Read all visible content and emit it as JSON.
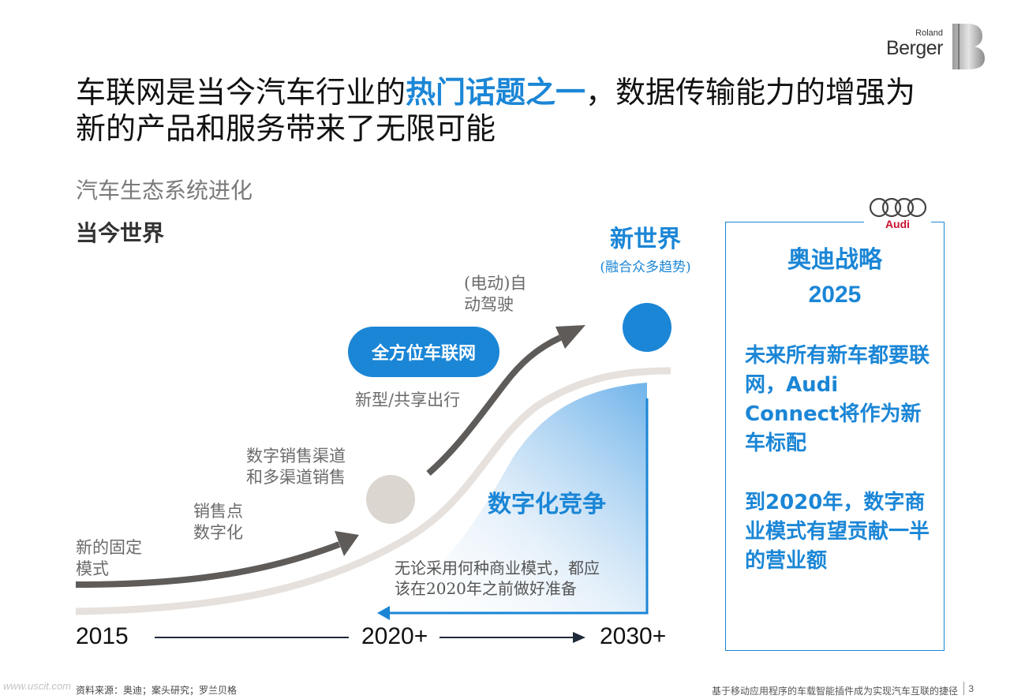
{
  "brand": {
    "line1": "Roland",
    "line2": "Berger"
  },
  "title": {
    "part1": "车联网是当今汽车行业的",
    "highlight": "热门话题之一",
    "part2": "，数据传输能力的增强为新的产品和服务带来了无限可能"
  },
  "subtitle": "汽车生态系统进化",
  "today_label": "当今世界",
  "new_world": {
    "title": "新世界",
    "note": "(融合众多趋势)"
  },
  "stages": [
    {
      "line1": "新的固定",
      "line2": "模式"
    },
    {
      "line1": "销售点",
      "line2": "数字化"
    },
    {
      "line1": "数字销售渠道",
      "line2": "和多渠道销售"
    },
    {
      "line1": "新型/共享出行",
      "line2": ""
    },
    {
      "line1": "(电动)自",
      "line2": "动驾驶"
    }
  ],
  "connected_pill": "全方位车联网",
  "digital_competition": "数字化竞争",
  "note": {
    "line1": "无论采用何种商业模式，都应",
    "line2": "该在2020年之前做好准备"
  },
  "timeline": {
    "start": "2015",
    "mid": "2020+",
    "end": "2030+"
  },
  "audi": {
    "logo_text": "Audi",
    "title_line1": "奥迪战略",
    "title_line2": "2025",
    "para1": "未来所有新车都要联网，Audi Connect将作为新车标配",
    "para2": "到2020年，数字商业模式有望贡献一半的营业额"
  },
  "footer": {
    "source": "资料来源：奥迪；案头研究；罗兰贝格",
    "caption": "基于移动应用程序的车载智能插件成为实现汽车互联的捷径",
    "page": "3",
    "watermark": "www.uscit.com"
  },
  "colors": {
    "accent": "#1b86d6",
    "dark_arrow": "#5e5b59",
    "light_curve": "#e6e1dc",
    "audi_red": "#c8102e"
  }
}
